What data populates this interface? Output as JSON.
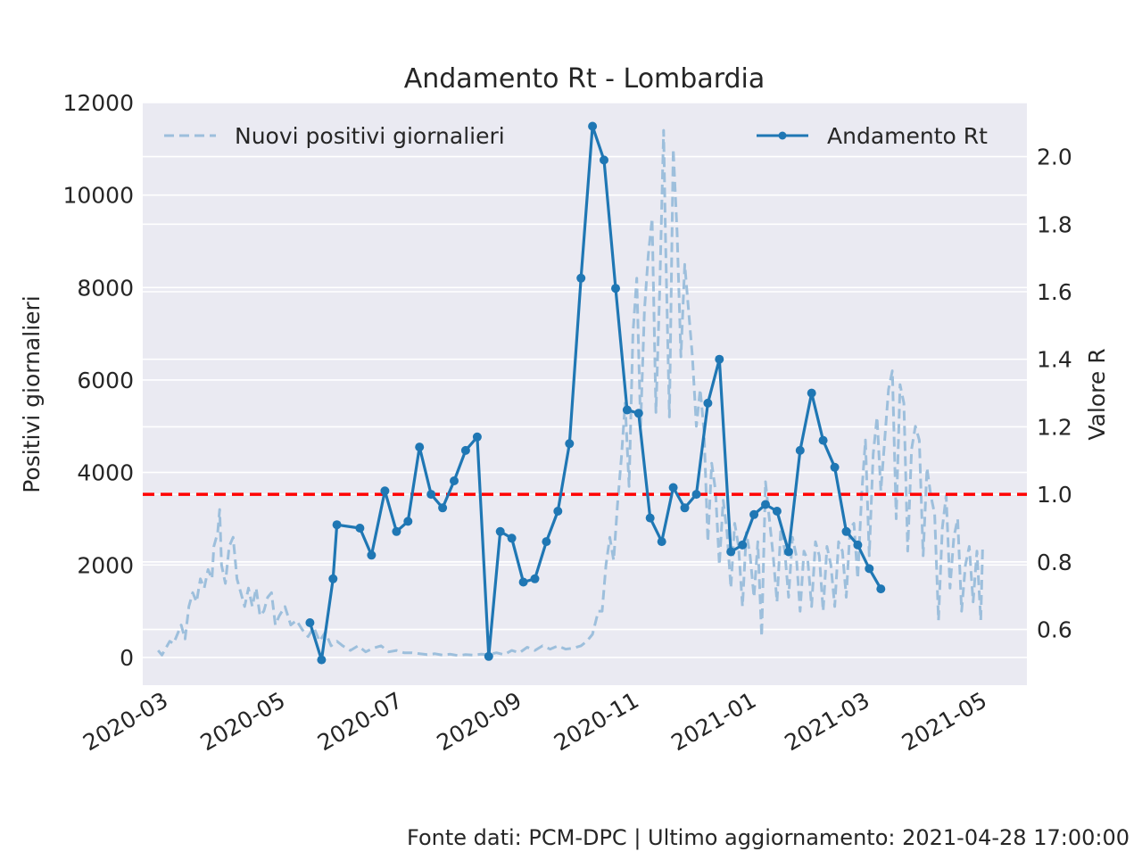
{
  "chart_data": {
    "type": "line",
    "title": "Andamento Rt - Lombardia",
    "ylabel_left": "Positivi giornalieri",
    "ylabel_right": "Valore R",
    "x_tick_labels": [
      "2020-03",
      "2020-05",
      "2020-07",
      "2020-09",
      "2020-11",
      "2021-01",
      "2021-03",
      "2021-05"
    ],
    "x_ticks": [
      "2020-03-01",
      "2020-05-01",
      "2020-07-01",
      "2020-09-01",
      "2020-11-01",
      "2021-01-01",
      "2021-03-01",
      "2021-05-01"
    ],
    "x_range": [
      "2020-02-16",
      "2021-05-21"
    ],
    "y_left_ticks": [
      0,
      2000,
      4000,
      6000,
      8000,
      10000,
      12000
    ],
    "y_left_range": [
      -600,
      12000
    ],
    "y_right_ticks": [
      0.6,
      0.8,
      1.0,
      1.2,
      1.4,
      1.6,
      1.8,
      2.0
    ],
    "y_right_range": [
      0.435,
      2.16
    ],
    "reference_line": {
      "axis": "right",
      "y": 1.0,
      "color": "#ff0000",
      "style": "dashed"
    },
    "grid": true,
    "legend": [
      {
        "label": "Nuovi positivi giornalieri",
        "placement": "top-left",
        "style": "dashed",
        "color": "#9dbfdc"
      },
      {
        "label": "Andamento Rt",
        "placement": "top-right",
        "style": "solid-marker",
        "color": "#1f77b4"
      }
    ],
    "series": [
      {
        "name": "Nuovi positivi giornalieri",
        "axis": "left",
        "style": "dashed",
        "color": "#9dbfdc",
        "points": [
          [
            "2020-02-24",
            150
          ],
          [
            "2020-02-26",
            50
          ],
          [
            "2020-02-28",
            200
          ],
          [
            "2020-03-01",
            350
          ],
          [
            "2020-03-03",
            300
          ],
          [
            "2020-03-05",
            500
          ],
          [
            "2020-03-07",
            700
          ],
          [
            "2020-03-09",
            400
          ],
          [
            "2020-03-11",
            1100
          ],
          [
            "2020-03-13",
            1400
          ],
          [
            "2020-03-15",
            1200
          ],
          [
            "2020-03-17",
            1700
          ],
          [
            "2020-03-19",
            1500
          ],
          [
            "2020-03-21",
            1900
          ],
          [
            "2020-03-23",
            1700
          ],
          [
            "2020-03-24",
            2400
          ],
          [
            "2020-03-26",
            2700
          ],
          [
            "2020-03-27",
            3200
          ],
          [
            "2020-03-28",
            2000
          ],
          [
            "2020-03-30",
            1600
          ],
          [
            "2020-04-01",
            2400
          ],
          [
            "2020-04-03",
            2600
          ],
          [
            "2020-04-05",
            1700
          ],
          [
            "2020-04-07",
            1400
          ],
          [
            "2020-04-09",
            1100
          ],
          [
            "2020-04-11",
            1500
          ],
          [
            "2020-04-13",
            1100
          ],
          [
            "2020-04-15",
            1500
          ],
          [
            "2020-04-17",
            900
          ],
          [
            "2020-04-19",
            1000
          ],
          [
            "2020-04-21",
            1300
          ],
          [
            "2020-04-23",
            1400
          ],
          [
            "2020-04-25",
            700
          ],
          [
            "2020-04-27",
            900
          ],
          [
            "2020-04-30",
            1100
          ],
          [
            "2020-05-03",
            700
          ],
          [
            "2020-05-06",
            800
          ],
          [
            "2020-05-09",
            600
          ],
          [
            "2020-05-12",
            450
          ],
          [
            "2020-05-15",
            650
          ],
          [
            "2020-05-18",
            350
          ],
          [
            "2020-05-21",
            550
          ],
          [
            "2020-05-24",
            250
          ],
          [
            "2020-05-27",
            350
          ],
          [
            "2020-05-30",
            250
          ],
          [
            "2020-06-03",
            150
          ],
          [
            "2020-06-07",
            250
          ],
          [
            "2020-06-11",
            120
          ],
          [
            "2020-06-15",
            200
          ],
          [
            "2020-06-19",
            250
          ],
          [
            "2020-06-23",
            120
          ],
          [
            "2020-06-27",
            150
          ],
          [
            "2020-07-01",
            100
          ],
          [
            "2020-07-05",
            100
          ],
          [
            "2020-07-09",
            80
          ],
          [
            "2020-07-13",
            60
          ],
          [
            "2020-07-17",
            80
          ],
          [
            "2020-07-21",
            50
          ],
          [
            "2020-07-25",
            70
          ],
          [
            "2020-07-29",
            40
          ],
          [
            "2020-08-02",
            60
          ],
          [
            "2020-08-06",
            50
          ],
          [
            "2020-08-10",
            70
          ],
          [
            "2020-08-14",
            60
          ],
          [
            "2020-08-18",
            100
          ],
          [
            "2020-08-22",
            60
          ],
          [
            "2020-08-26",
            150
          ],
          [
            "2020-08-30",
            100
          ],
          [
            "2020-09-03",
            220
          ],
          [
            "2020-09-07",
            150
          ],
          [
            "2020-09-11",
            250
          ],
          [
            "2020-09-15",
            180
          ],
          [
            "2020-09-19",
            250
          ],
          [
            "2020-09-23",
            180
          ],
          [
            "2020-09-27",
            200
          ],
          [
            "2020-10-01",
            250
          ],
          [
            "2020-10-04",
            350
          ],
          [
            "2020-10-07",
            500
          ],
          [
            "2020-10-10",
            1000
          ],
          [
            "2020-10-12",
            1000
          ],
          [
            "2020-10-14",
            2000
          ],
          [
            "2020-10-16",
            2600
          ],
          [
            "2020-10-18",
            2100
          ],
          [
            "2020-10-20",
            3300
          ],
          [
            "2020-10-22",
            4300
          ],
          [
            "2020-10-24",
            5500
          ],
          [
            "2020-10-26",
            3700
          ],
          [
            "2020-10-28",
            7000
          ],
          [
            "2020-10-30",
            8200
          ],
          [
            "2020-11-01",
            5000
          ],
          [
            "2020-11-03",
            7500
          ],
          [
            "2020-11-05",
            8700
          ],
          [
            "2020-11-07",
            9500
          ],
          [
            "2020-11-09",
            5300
          ],
          [
            "2020-11-11",
            8000
          ],
          [
            "2020-11-13",
            11400
          ],
          [
            "2020-11-14",
            9000
          ],
          [
            "2020-11-16",
            5200
          ],
          [
            "2020-11-18",
            11000
          ],
          [
            "2020-11-20",
            9200
          ],
          [
            "2020-11-22",
            6500
          ],
          [
            "2020-11-24",
            8500
          ],
          [
            "2020-11-26",
            7500
          ],
          [
            "2020-11-28",
            6500
          ],
          [
            "2020-11-30",
            5000
          ],
          [
            "2020-12-02",
            5800
          ],
          [
            "2020-12-04",
            4900
          ],
          [
            "2020-12-06",
            2500
          ],
          [
            "2020-12-08",
            4200
          ],
          [
            "2020-12-10",
            3600
          ],
          [
            "2020-12-12",
            2000
          ],
          [
            "2020-12-14",
            3400
          ],
          [
            "2020-12-16",
            2700
          ],
          [
            "2020-12-18",
            1500
          ],
          [
            "2020-12-20",
            2900
          ],
          [
            "2020-12-22",
            2400
          ],
          [
            "2020-12-24",
            1100
          ],
          [
            "2020-12-26",
            2700
          ],
          [
            "2020-12-28",
            2200
          ],
          [
            "2020-12-30",
            1300
          ],
          [
            "2021-01-01",
            2500
          ],
          [
            "2021-01-03",
            450
          ],
          [
            "2021-01-05",
            3800
          ],
          [
            "2021-01-07",
            3000
          ],
          [
            "2021-01-09",
            2200
          ],
          [
            "2021-01-11",
            1200
          ],
          [
            "2021-01-13",
            2800
          ],
          [
            "2021-01-15",
            2300
          ],
          [
            "2021-01-17",
            1300
          ],
          [
            "2021-01-19",
            2600
          ],
          [
            "2021-01-21",
            2200
          ],
          [
            "2021-01-23",
            1000
          ],
          [
            "2021-01-25",
            2300
          ],
          [
            "2021-01-27",
            2100
          ],
          [
            "2021-01-29",
            1100
          ],
          [
            "2021-01-31",
            2500
          ],
          [
            "2021-02-02",
            2200
          ],
          [
            "2021-02-04",
            1000
          ],
          [
            "2021-02-06",
            2400
          ],
          [
            "2021-02-08",
            2000
          ],
          [
            "2021-02-10",
            1100
          ],
          [
            "2021-02-12",
            2500
          ],
          [
            "2021-02-14",
            2300
          ],
          [
            "2021-02-16",
            1300
          ],
          [
            "2021-02-18",
            2800
          ],
          [
            "2021-02-20",
            2900
          ],
          [
            "2021-02-22",
            1700
          ],
          [
            "2021-02-24",
            3500
          ],
          [
            "2021-02-26",
            4700
          ],
          [
            "2021-02-28",
            2200
          ],
          [
            "2021-03-02",
            4400
          ],
          [
            "2021-03-04",
            5200
          ],
          [
            "2021-03-06",
            3600
          ],
          [
            "2021-03-08",
            4700
          ],
          [
            "2021-03-10",
            5800
          ],
          [
            "2021-03-12",
            6200
          ],
          [
            "2021-03-14",
            3000
          ],
          [
            "2021-03-16",
            5900
          ],
          [
            "2021-03-18",
            5500
          ],
          [
            "2021-03-20",
            2300
          ],
          [
            "2021-03-22",
            4500
          ],
          [
            "2021-03-24",
            5000
          ],
          [
            "2021-03-26",
            4700
          ],
          [
            "2021-03-28",
            2200
          ],
          [
            "2021-03-30",
            4100
          ],
          [
            "2021-04-01",
            3500
          ],
          [
            "2021-04-03",
            3100
          ],
          [
            "2021-04-05",
            800
          ],
          [
            "2021-04-07",
            2800
          ],
          [
            "2021-04-09",
            3500
          ],
          [
            "2021-04-11",
            1500
          ],
          [
            "2021-04-13",
            2600
          ],
          [
            "2021-04-15",
            3000
          ],
          [
            "2021-04-17",
            1000
          ],
          [
            "2021-04-19",
            2000
          ],
          [
            "2021-04-21",
            2400
          ],
          [
            "2021-04-23",
            1200
          ],
          [
            "2021-04-25",
            2300
          ],
          [
            "2021-04-27",
            800
          ],
          [
            "2021-04-28",
            2400
          ]
        ]
      },
      {
        "name": "Andamento Rt",
        "axis": "right",
        "style": "line-marker",
        "color": "#1f77b4",
        "points": [
          [
            "2020-05-13",
            0.62
          ],
          [
            "2020-05-19",
            0.51
          ],
          [
            "2020-05-25",
            0.75
          ],
          [
            "2020-05-27",
            0.91
          ],
          [
            "2020-06-08",
            0.9
          ],
          [
            "2020-06-14",
            0.82
          ],
          [
            "2020-06-21",
            1.01
          ],
          [
            "2020-06-27",
            0.89
          ],
          [
            "2020-07-03",
            0.92
          ],
          [
            "2020-07-09",
            1.14
          ],
          [
            "2020-07-15",
            1.0
          ],
          [
            "2020-07-21",
            0.96
          ],
          [
            "2020-07-27",
            1.04
          ],
          [
            "2020-08-02",
            1.13
          ],
          [
            "2020-08-08",
            1.17
          ],
          [
            "2020-08-14",
            0.52
          ],
          [
            "2020-08-20",
            0.89
          ],
          [
            "2020-08-26",
            0.87
          ],
          [
            "2020-09-01",
            0.74
          ],
          [
            "2020-09-07",
            0.75
          ],
          [
            "2020-09-13",
            0.86
          ],
          [
            "2020-09-19",
            0.95
          ],
          [
            "2020-09-25",
            1.15
          ],
          [
            "2020-10-01",
            1.64
          ],
          [
            "2020-10-07",
            2.09
          ],
          [
            "2020-10-13",
            1.99
          ],
          [
            "2020-10-19",
            1.61
          ],
          [
            "2020-10-25",
            1.25
          ],
          [
            "2020-10-31",
            1.24
          ],
          [
            "2020-11-06",
            0.93
          ],
          [
            "2020-11-12",
            0.86
          ],
          [
            "2020-11-18",
            1.02
          ],
          [
            "2020-11-24",
            0.96
          ],
          [
            "2020-11-30",
            1.0
          ],
          [
            "2020-12-06",
            1.27
          ],
          [
            "2020-12-12",
            1.4
          ],
          [
            "2020-12-18",
            0.83
          ],
          [
            "2020-12-24",
            0.85
          ],
          [
            "2020-12-30",
            0.94
          ],
          [
            "2021-01-05",
            0.97
          ],
          [
            "2021-01-11",
            0.95
          ],
          [
            "2021-01-17",
            0.83
          ],
          [
            "2021-01-23",
            1.13
          ],
          [
            "2021-01-29",
            1.3
          ],
          [
            "2021-02-04",
            1.16
          ],
          [
            "2021-02-10",
            1.08
          ],
          [
            "2021-02-16",
            0.89
          ],
          [
            "2021-02-22",
            0.85
          ],
          [
            "2021-02-28",
            0.78
          ],
          [
            "2021-03-06",
            0.72
          ]
        ]
      }
    ]
  },
  "footer": "Fonte dati: PCM-DPC | Ultimo aggiornamento: 2021-04-28 17:00:00"
}
